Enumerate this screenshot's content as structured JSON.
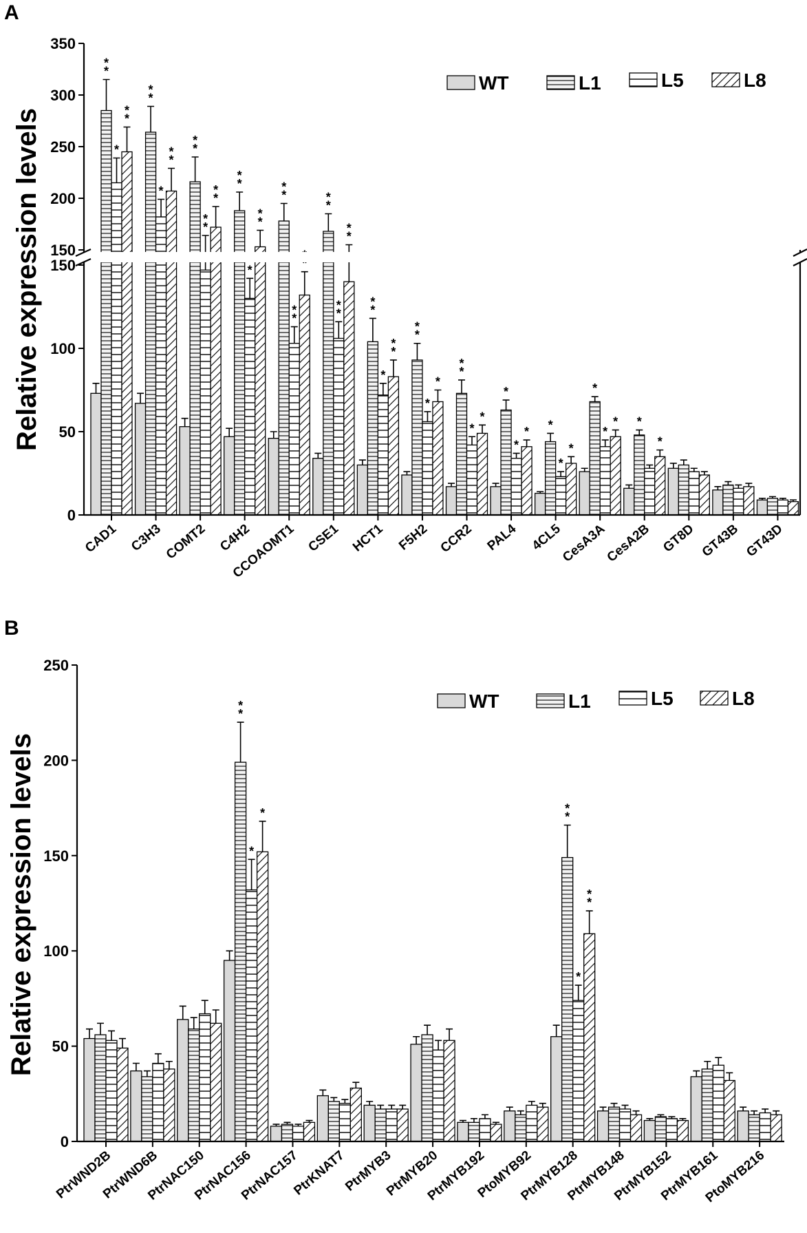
{
  "chart_data": [
    {
      "panel": "A",
      "type": "bar",
      "ylabel": "Relative expression levels",
      "ylim": [
        0,
        350
      ],
      "axis_break": {
        "lower": [
          0,
          150
        ],
        "upper": [
          150,
          350
        ]
      },
      "yticks_lower": [
        0,
        50,
        100,
        150
      ],
      "yticks_upper": [
        150,
        200,
        250,
        300,
        350
      ],
      "legend": {
        "position": "top-right",
        "entries": [
          "WT",
          "L1",
          "L5",
          "L8"
        ]
      },
      "categories": [
        "CAD1",
        "C3H3",
        "COMT2",
        "C4H2",
        "CCOAOMT1",
        "CSE1",
        "HCT1",
        "F5H2",
        "CCR2",
        "PAL4",
        "4CL5",
        "CesA3A",
        "CesA2B",
        "GT8D",
        "GT43B",
        "GT43D"
      ],
      "series": [
        {
          "name": "WT",
          "values": [
            73,
            67,
            53,
            47,
            46,
            34,
            30,
            24,
            17,
            17,
            13,
            26,
            16,
            28,
            15,
            9
          ],
          "errors": [
            6,
            6,
            5,
            5,
            4,
            3,
            3,
            2,
            2,
            2,
            1,
            2,
            2,
            3,
            2,
            1
          ],
          "sig": [
            "",
            "",
            "",
            "",
            "",
            "",
            "",
            "",
            "",
            "",
            "",
            "",
            "",
            "",
            "",
            ""
          ]
        },
        {
          "name": "L1",
          "values": [
            285,
            264,
            216,
            188,
            178,
            168,
            104,
            93,
            73,
            63,
            44,
            68,
            48,
            30,
            18,
            10
          ],
          "errors": [
            30,
            25,
            24,
            18,
            17,
            17,
            14,
            10,
            8,
            6,
            5,
            3,
            3,
            3,
            2,
            1
          ],
          "sig": [
            "**",
            "**",
            "**",
            "**",
            "**",
            "**",
            "**",
            "**",
            "**",
            "*",
            "*",
            "*",
            "*",
            "",
            "",
            ""
          ]
        },
        {
          "name": "L5",
          "values": [
            215,
            182,
            147,
            130,
            103,
            106,
            72,
            56,
            42,
            34,
            23,
            41,
            28,
            26,
            16,
            9
          ],
          "errors": [
            24,
            17,
            17,
            12,
            10,
            10,
            7,
            6,
            5,
            3,
            3,
            4,
            2,
            2,
            2,
            1
          ],
          "sig": [
            "*",
            "*",
            "**",
            "**",
            "**",
            "**",
            "*",
            "*",
            "*",
            "*",
            "*",
            "*",
            "",
            "",
            "",
            ""
          ]
        },
        {
          "name": "L8",
          "values": [
            245,
            207,
            172,
            153,
            132,
            140,
            83,
            68,
            49,
            41,
            31,
            47,
            35,
            24,
            17,
            8
          ],
          "errors": [
            24,
            22,
            20,
            16,
            14,
            15,
            10,
            7,
            5,
            4,
            4,
            4,
            4,
            2,
            2,
            1
          ],
          "sig": [
            "**",
            "**",
            "**",
            "**",
            "**",
            "**",
            "**",
            "*",
            "*",
            "*",
            "*",
            "*",
            "*",
            "",
            "",
            ""
          ]
        }
      ]
    },
    {
      "panel": "B",
      "type": "bar",
      "ylabel": "Relative expression levels",
      "ylim": [
        0,
        250
      ],
      "yticks": [
        0,
        50,
        100,
        150,
        200,
        250
      ],
      "legend": {
        "position": "top-right",
        "entries": [
          "WT",
          "L1",
          "L5",
          "L8"
        ]
      },
      "categories": [
        "PtrWND2B",
        "PtrWND6B",
        "PtrNAC150",
        "PtrNAC156",
        "PtrNAC157",
        "PtrKNAT7",
        "PtrMYB3",
        "PtrMYB20",
        "PtrMYB192",
        "PtoMYB92",
        "PtrMYB128",
        "PtrMYB148",
        "PtrMYB152",
        "PtrMYB161",
        "PtoMYB216"
      ],
      "series": [
        {
          "name": "WT",
          "values": [
            54,
            37,
            64,
            95,
            8,
            24,
            19,
            51,
            10,
            16,
            55,
            16,
            11,
            34,
            16
          ],
          "errors": [
            5,
            4,
            7,
            5,
            1,
            3,
            2,
            4,
            1,
            2,
            6,
            2,
            1,
            3,
            2
          ],
          "sig": [
            "",
            "",
            "",
            "",
            "",
            "",
            "",
            "",
            "",
            "",
            "",
            "",
            "",
            "",
            ""
          ]
        },
        {
          "name": "L1",
          "values": [
            56,
            34,
            59,
            199,
            9,
            21,
            17,
            56,
            10,
            14,
            149,
            18,
            13,
            38,
            14
          ],
          "errors": [
            6,
            3,
            6,
            21,
            1,
            2,
            2,
            5,
            2,
            2,
            17,
            2,
            1,
            4,
            2
          ],
          "sig": [
            "",
            "",
            "",
            "**",
            "",
            "",
            "",
            "",
            "",
            "",
            "**",
            "",
            "",
            "",
            ""
          ]
        },
        {
          "name": "L5",
          "values": [
            53,
            41,
            67,
            132,
            8,
            20,
            17,
            48,
            12,
            19,
            74,
            17,
            12,
            40,
            15
          ],
          "errors": [
            5,
            5,
            7,
            16,
            1,
            2,
            2,
            5,
            2,
            2,
            8,
            2,
            1,
            4,
            2
          ],
          "sig": [
            "",
            "",
            "",
            "*",
            "",
            "",
            "",
            "",
            "",
            "",
            "*",
            "",
            "",
            "",
            ""
          ]
        },
        {
          "name": "L8",
          "values": [
            49,
            38,
            62,
            152,
            10,
            28,
            17,
            53,
            9,
            18,
            109,
            14,
            11,
            32,
            14
          ],
          "errors": [
            5,
            4,
            7,
            16,
            1,
            3,
            2,
            6,
            1,
            2,
            12,
            2,
            1,
            4,
            2
          ],
          "sig": [
            "",
            "",
            "",
            "*",
            "",
            "",
            "",
            "",
            "",
            "",
            "**",
            "",
            "",
            "",
            ""
          ]
        }
      ]
    }
  ]
}
